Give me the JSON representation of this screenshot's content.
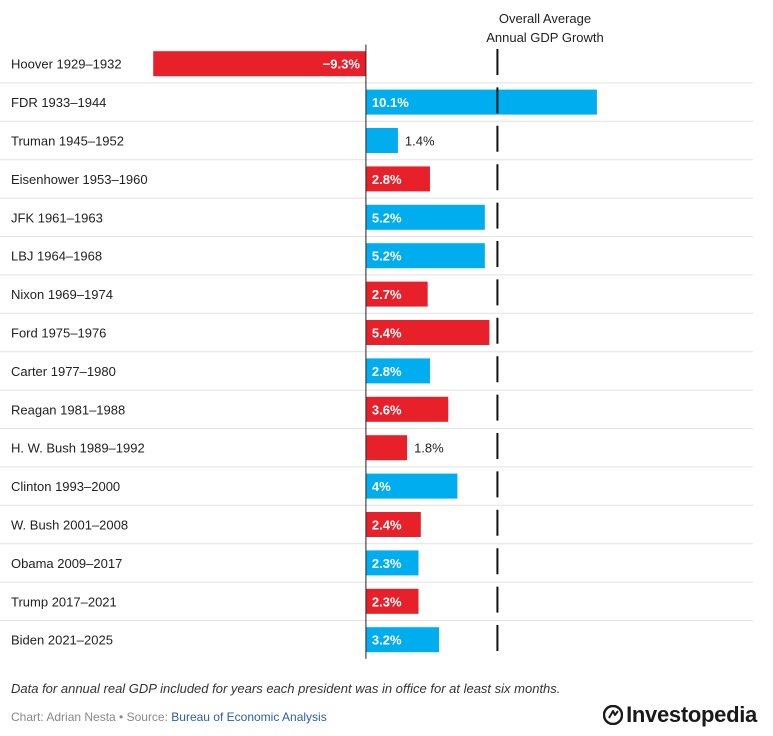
{
  "chart_data": {
    "type": "bar",
    "orientation": "horizontal",
    "reference_line_label": [
      "Overall Average",
      "Annual GDP Growth"
    ],
    "reference_value": 5.75,
    "xlim": [
      -16.0,
      17.8
    ],
    "categories": [
      "Hoover 1929–1932",
      "FDR 1933–1944",
      "Truman 1945–1952",
      "Eisenhower 1953–1960",
      "JFK 1961–1963",
      "LBJ 1964–1968",
      "Nixon 1969–1974",
      "Ford 1975–1976",
      "Carter 1977–1980",
      "Reagan 1981–1988",
      "H. W. Bush 1989–1992",
      "Clinton 1993–2000",
      "W. Bush 2001–2008",
      "Obama 2009–2017",
      "Trump 2017–2021",
      "Biden 2021–2025"
    ],
    "values": [
      -9.3,
      10.1,
      1.4,
      2.8,
      5.2,
      5.2,
      2.7,
      5.4,
      2.8,
      3.6,
      1.8,
      4,
      2.4,
      2.3,
      2.3,
      3.2
    ],
    "value_labels": [
      "−9.3%",
      "10.1%",
      "1.4%",
      "2.8%",
      "5.2%",
      "5.2%",
      "2.7%",
      "5.4%",
      "2.8%",
      "3.6%",
      "1.8%",
      "4%",
      "2.4%",
      "2.3%",
      "2.3%",
      "3.2%"
    ],
    "party": [
      "R",
      "D",
      "D",
      "R",
      "D",
      "D",
      "R",
      "R",
      "D",
      "R",
      "R",
      "D",
      "R",
      "D",
      "R",
      "D"
    ],
    "colors": {
      "R": "#e8202a",
      "D": "#00aeef"
    }
  },
  "footer": {
    "note": "Data for annual real GDP included for years each president was in office for at least six months.",
    "credit_prefix": "Chart: Adrian Nesta • Source: ",
    "source_link": "Bureau of Economic Analysis",
    "brand": "Investopedia"
  }
}
